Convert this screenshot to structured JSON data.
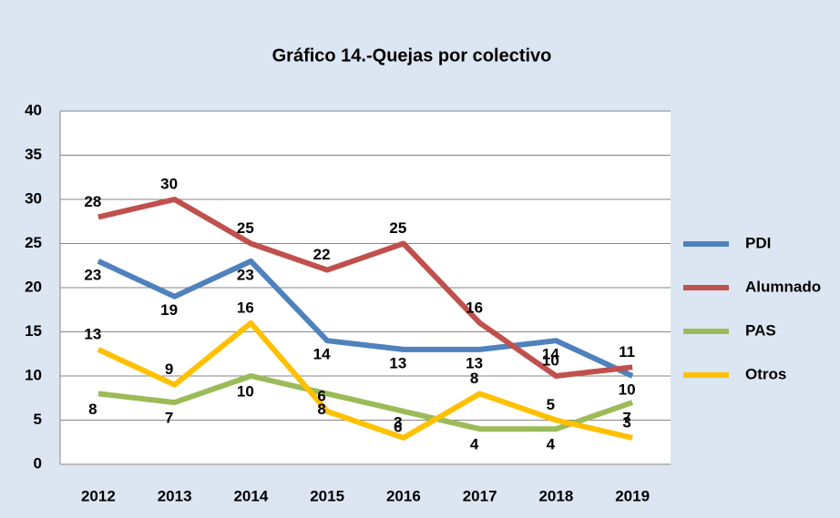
{
  "chart_data": {
    "type": "line",
    "title": "Gráfico 14.-Quejas por colectivo",
    "categories": [
      "2012",
      "2013",
      "2014",
      "2015",
      "2016",
      "2017",
      "2018",
      "2019"
    ],
    "series": [
      {
        "name": "PDI",
        "color": "#4f81bd",
        "values": [
          23,
          19,
          23,
          14,
          13,
          13,
          14,
          10
        ]
      },
      {
        "name": "Alumnado",
        "color": "#c0504d",
        "values": [
          28,
          30,
          25,
          22,
          25,
          16,
          10,
          11
        ]
      },
      {
        "name": "PAS",
        "color": "#9bbb59",
        "values": [
          8,
          7,
          10,
          8,
          6,
          4,
          4,
          7
        ]
      },
      {
        "name": "Otros",
        "color": "#ffc000",
        "values": [
          13,
          9,
          16,
          6,
          3,
          8,
          5,
          3
        ]
      }
    ],
    "ylim": [
      0,
      40
    ],
    "yticks": [
      0,
      5,
      10,
      15,
      20,
      25,
      30,
      35,
      40
    ],
    "grid": true,
    "legend": "right"
  }
}
